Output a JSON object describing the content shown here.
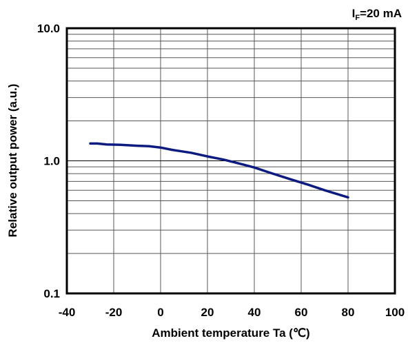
{
  "chart_data": {
    "type": "line",
    "title": "",
    "annotation": {
      "prefix": "I",
      "subscript": "F",
      "rest": "=20 mA"
    },
    "xlabel": "Ambient temperature Ta (℃)",
    "ylabel": "Relative output power (a.u.)",
    "xlim": [
      -40,
      100
    ],
    "ylim": [
      0.1,
      10.0
    ],
    "yscale": "log",
    "grid": true,
    "x_ticks": [
      -40,
      -20,
      0,
      20,
      40,
      60,
      80,
      100
    ],
    "x_tick_labels": [
      "-40",
      "-20",
      "0",
      "20",
      "40",
      "60",
      "80",
      "100"
    ],
    "y_ticks": [
      0.1,
      1.0,
      10.0
    ],
    "y_tick_labels": [
      "0.1",
      "1.0",
      "10.0"
    ],
    "series": [
      {
        "color": "#0d1a80",
        "x": [
          -30,
          -27,
          -23,
          -17,
          -10,
          -5,
          0,
          5,
          13,
          20,
          27,
          35,
          40,
          47,
          55,
          63,
          70,
          80
        ],
        "y": [
          1.35,
          1.35,
          1.33,
          1.32,
          1.3,
          1.29,
          1.26,
          1.21,
          1.15,
          1.08,
          1.02,
          0.94,
          0.89,
          0.81,
          0.73,
          0.66,
          0.6,
          0.53
        ]
      }
    ]
  }
}
